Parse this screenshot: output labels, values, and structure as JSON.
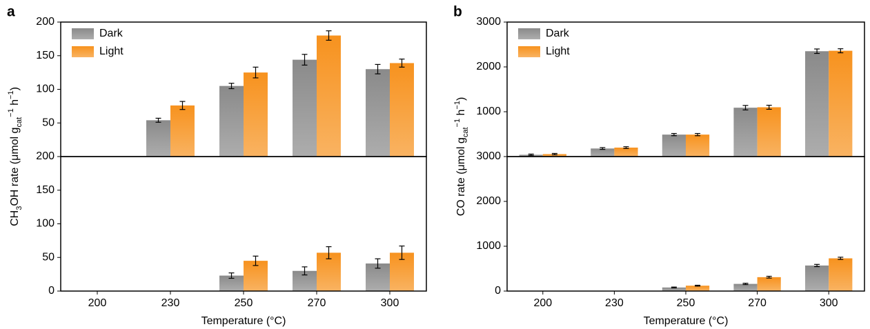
{
  "chart_data": [
    {
      "type": "bar",
      "label": "a",
      "ylabel": [
        {
          "text": "CH"
        },
        {
          "text": "3",
          "sub": true
        },
        {
          "text": "OH rate (μmol g"
        },
        {
          "text": "cat",
          "sub": true
        },
        {
          "text": "−1",
          "sup": true
        },
        {
          "text": " h"
        },
        {
          "text": "−1",
          "sup": true
        },
        {
          "text": ")"
        }
      ],
      "xlabel": "Temperature (°C)",
      "categories": [
        "200",
        "230",
        "250",
        "270",
        "300"
      ],
      "legend": [
        {
          "name": "Dark",
          "color": "#8a8a8a"
        },
        {
          "name": "Light",
          "color": "#f7921e"
        }
      ],
      "subplots": [
        {
          "ylim": [
            0,
            200
          ],
          "yticks": [
            50,
            100,
            150,
            200
          ],
          "series": [
            {
              "values": [
                null,
                54,
                105,
                144,
                130
              ],
              "errors": [
                null,
                3,
                4,
                8,
                7
              ]
            },
            {
              "values": [
                null,
                76,
                125,
                180,
                139
              ],
              "errors": [
                null,
                6,
                8,
                7,
                6
              ]
            }
          ]
        },
        {
          "ylim": [
            0,
            200
          ],
          "yticks": [
            0,
            50,
            100,
            150,
            200
          ],
          "series": [
            {
              "values": [
                null,
                null,
                23,
                30,
                41
              ],
              "errors": [
                null,
                null,
                4,
                6,
                7
              ]
            },
            {
              "values": [
                null,
                null,
                45,
                57,
                57
              ],
              "errors": [
                null,
                null,
                7,
                9,
                10
              ]
            }
          ]
        }
      ]
    },
    {
      "type": "bar",
      "label": "b",
      "ylabel": [
        {
          "text": "CO rate (μmol g"
        },
        {
          "text": "cat",
          "sub": true
        },
        {
          "text": "−1",
          "sup": true
        },
        {
          "text": " h"
        },
        {
          "text": "−1",
          "sup": true
        },
        {
          "text": ")"
        }
      ],
      "xlabel": "Temperature (°C)",
      "categories": [
        "200",
        "230",
        "250",
        "270",
        "300"
      ],
      "legend": [
        {
          "name": "Dark",
          "color": "#8a8a8a"
        },
        {
          "name": "Light",
          "color": "#f7921e"
        }
      ],
      "subplots": [
        {
          "ylim": [
            0,
            3000
          ],
          "yticks": [
            1000,
            2000,
            3000
          ],
          "series": [
            {
              "values": [
                40,
                180,
                490,
                1090,
                2350
              ],
              "errors": [
                15,
                20,
                25,
                50,
                50
              ]
            },
            {
              "values": [
                55,
                200,
                490,
                1100,
                2360
              ],
              "errors": [
                15,
                20,
                25,
                45,
                45
              ]
            }
          ]
        },
        {
          "ylim": [
            0,
            3000
          ],
          "yticks": [
            0,
            1000,
            2000,
            3000
          ],
          "series": [
            {
              "values": [
                null,
                null,
                80,
                160,
                570
              ],
              "errors": [
                null,
                null,
                10,
                15,
                25
              ]
            },
            {
              "values": [
                null,
                null,
                120,
                310,
                730
              ],
              "errors": [
                null,
                null,
                10,
                20,
                25
              ]
            }
          ]
        }
      ]
    }
  ]
}
